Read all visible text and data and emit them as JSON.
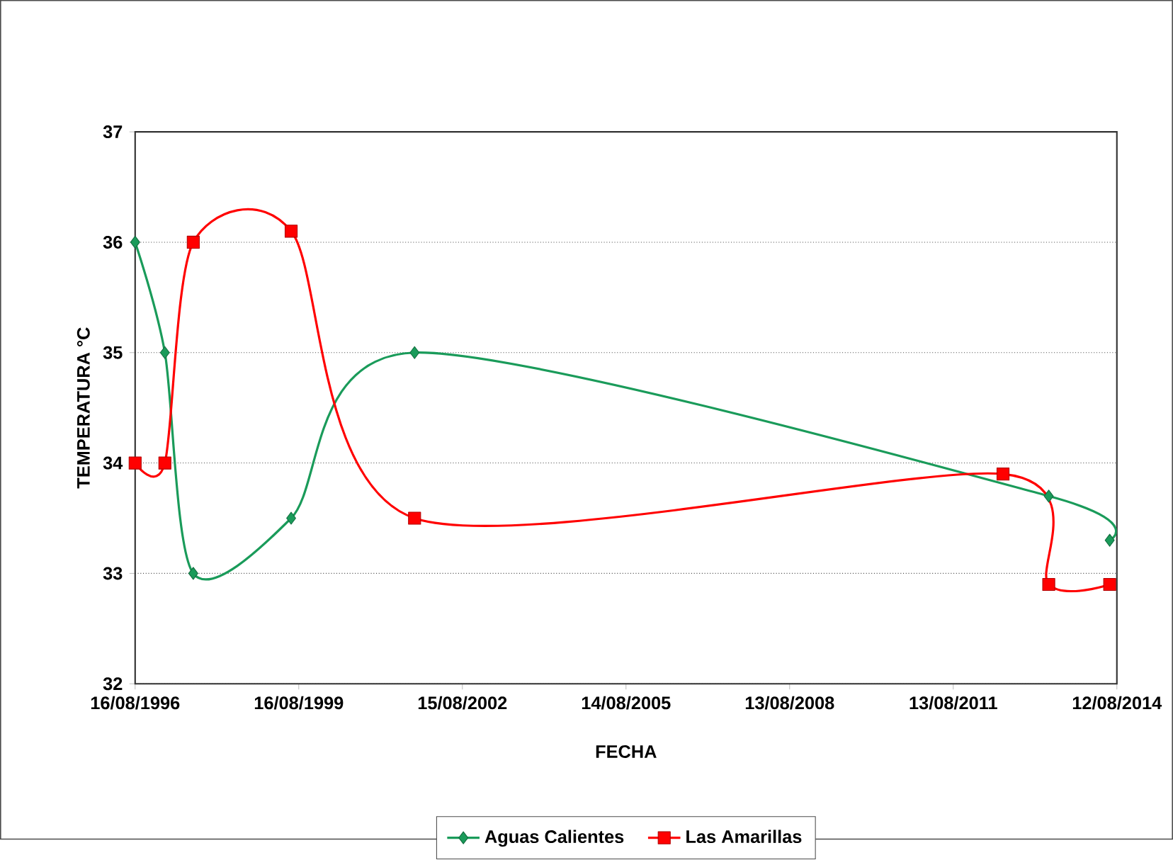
{
  "chart_data": {
    "type": "line",
    "xlabel": "FECHA",
    "ylabel": "TEMPERATURA °C",
    "xlim": [
      "1996-08-16",
      "2014-08-12"
    ],
    "xticks": [
      {
        "value": "1996-08-16",
        "label": "16/08/1996"
      },
      {
        "value": "1999-08-16",
        "label": "16/08/1999"
      },
      {
        "value": "2002-08-15",
        "label": "15/08/2002"
      },
      {
        "value": "2005-08-14",
        "label": "14/08/2005"
      },
      {
        "value": "2008-08-13",
        "label": "13/08/2008"
      },
      {
        "value": "2011-08-13",
        "label": "13/08/2011"
      },
      {
        "value": "2014-08-12",
        "label": "12/08/2014"
      }
    ],
    "ylim": [
      32,
      37
    ],
    "yticks": [
      32,
      33,
      34,
      35,
      36,
      37
    ],
    "grid": "y",
    "legend": "bottom",
    "series": [
      {
        "name": "Aguas Calientes",
        "color": "#1a9b5a",
        "marker": "diamond",
        "x": [
          "1996-08-16",
          "1997-03-03",
          "1997-09-09",
          "1999-06-26",
          "2001-09-29",
          "2013-05-13",
          "2014-06-25"
        ],
        "values": [
          36,
          35,
          33,
          33.5,
          35,
          33.7,
          33.3
        ]
      },
      {
        "name": "Las Amarillas",
        "color": "#ff0000",
        "marker": "square",
        "x": [
          "1996-08-16",
          "1997-03-03",
          "1997-09-09",
          "1999-06-26",
          "2001-09-29",
          "2012-07-11",
          "2013-05-13",
          "2014-06-25"
        ],
        "values": [
          34,
          34,
          36,
          36.1,
          33.5,
          33.9,
          32.9,
          32.9
        ]
      }
    ]
  }
}
